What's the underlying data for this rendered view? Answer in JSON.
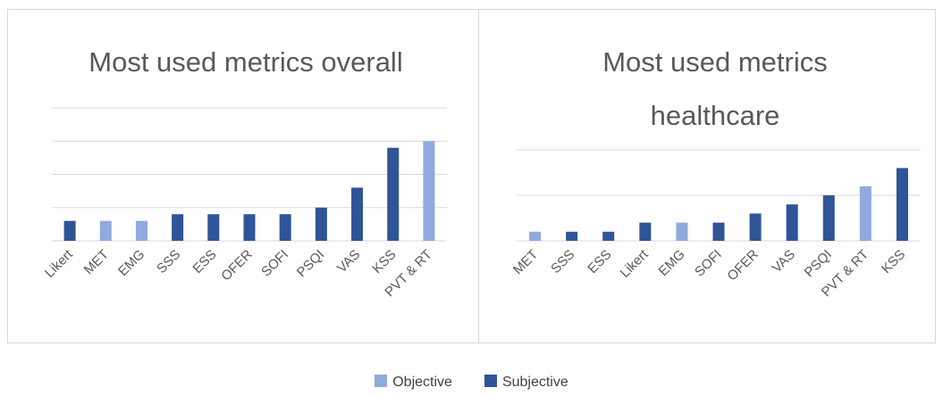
{
  "legend": [
    {
      "name": "Objective",
      "color": "#8faadc"
    },
    {
      "name": "Subjective",
      "color": "#2f5597"
    }
  ],
  "chart_data": [
    {
      "type": "bar",
      "title": "Most used metrics overall",
      "categories": [
        "Likert",
        "MET",
        "EMG",
        "SSS",
        "ESS",
        "OFER",
        "SOFI",
        "PSQI",
        "VAS",
        "KSS",
        "PVT & RT"
      ],
      "values": [
        3,
        3,
        3,
        4,
        4,
        4,
        4,
        5,
        8,
        14,
        15
      ],
      "kinds": [
        1,
        0,
        0,
        1,
        1,
        1,
        1,
        1,
        1,
        1,
        0
      ],
      "ylim": [
        0,
        20
      ],
      "yticks": [
        0,
        5,
        10,
        15,
        20
      ],
      "grid": true
    },
    {
      "type": "bar",
      "title": "Most used metrics healthcare",
      "categories": [
        "MET",
        "SSS",
        "ESS",
        "Likert",
        "EMG",
        "SOFI",
        "OFER",
        "VAS",
        "PSQI",
        "PVT & RT",
        "KSS"
      ],
      "values": [
        1,
        1,
        1,
        2,
        2,
        2,
        3,
        4,
        5,
        6,
        8
      ],
      "kinds": [
        0,
        1,
        1,
        1,
        0,
        1,
        1,
        1,
        1,
        0,
        1
      ],
      "ylim": [
        0,
        10
      ],
      "yticks": [
        0,
        5,
        10
      ],
      "grid": true
    }
  ]
}
